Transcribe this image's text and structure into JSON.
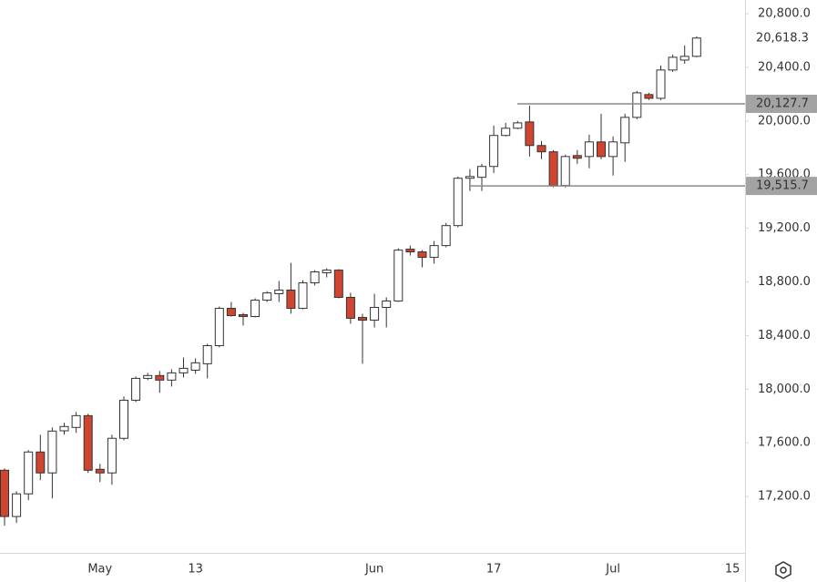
{
  "chart_data": {
    "type": "candlestick",
    "categories": [
      null,
      null,
      null,
      null,
      null,
      null,
      null,
      null,
      "May",
      null,
      null,
      null,
      null,
      null,
      null,
      null,
      "13",
      null,
      null,
      null,
      null,
      null,
      null,
      null,
      null,
      null,
      null,
      null,
      null,
      null,
      null,
      "Jun",
      null,
      null,
      null,
      null,
      null,
      null,
      null,
      null,
      null,
      "17",
      null,
      null,
      null,
      null,
      null,
      null,
      null,
      null,
      null,
      "Jul",
      null,
      null,
      null,
      null,
      null,
      null,
      null,
      null,
      null,
      "15"
    ],
    "open": [
      17396,
      17051,
      17220,
      17532,
      17376,
      17690,
      17715,
      17803,
      17403,
      17376,
      17634,
      17918,
      18081,
      18102,
      18068,
      18122,
      18142,
      18190,
      18325,
      18603,
      18556,
      18542,
      18664,
      18712,
      18739,
      18603,
      18793,
      18868,
      18888,
      18685,
      18535,
      18515,
      18610,
      18658,
      19044,
      19024,
      18983,
      19071,
      19220,
      19573,
      19580,
      19661,
      19892,
      19946,
      19993,
      19817,
      19770,
      19519,
      19742,
      19735,
      19844,
      19735,
      19837,
      20027,
      20197,
      20169,
      20380,
      20454,
      20482,
      null,
      null,
      null
    ],
    "high": [
      17410,
      17240,
      17546,
      17661,
      17715,
      17749,
      17830,
      17817,
      17444,
      17661,
      17946,
      18095,
      18122,
      18136,
      18149,
      18237,
      18230,
      18339,
      18617,
      18651,
      18569,
      18678,
      18732,
      18807,
      18942,
      18813,
      18888,
      18902,
      18895,
      18719,
      18563,
      18712,
      18685,
      19051,
      19071,
      19037,
      19105,
      19240,
      19586,
      19641,
      19681,
      19966,
      19986,
      20000,
      20115,
      19851,
      19783,
      19749,
      19783,
      19898,
      20054,
      19885,
      20054,
      20224,
      20210,
      20414,
      20495,
      20563,
      20630,
      null,
      null,
      null
    ],
    "low": [
      16983,
      17003,
      17173,
      17322,
      17186,
      17661,
      17675,
      17376,
      17308,
      17288,
      17620,
      17905,
      18068,
      17973,
      18020,
      18088,
      18115,
      18081,
      18312,
      18542,
      18474,
      18535,
      18651,
      18651,
      18563,
      18596,
      18773,
      18834,
      18678,
      18488,
      18190,
      18461,
      18461,
      18651,
      18997,
      18909,
      18936,
      19058,
      19207,
      19478,
      19478,
      19613,
      19885,
      19939,
      19735,
      19715,
      19505,
      19505,
      19681,
      19647,
      19715,
      19593,
      19695,
      20013,
      20156,
      20156,
      20366,
      20427,
      20475,
      null,
      null,
      null
    ],
    "close": [
      17051,
      17220,
      17532,
      17376,
      17688,
      17722,
      17803,
      17396,
      17376,
      17634,
      17918,
      18081,
      18102,
      18068,
      18122,
      18156,
      18197,
      18325,
      18603,
      18549,
      18542,
      18664,
      18718,
      18739,
      18603,
      18793,
      18875,
      18888,
      18685,
      18529,
      18515,
      18610,
      18658,
      19037,
      19024,
      18983,
      19071,
      19220,
      19573,
      19586,
      19661,
      19892,
      19946,
      19986,
      19817,
      19770,
      19519,
      19735,
      19722,
      19844,
      19735,
      19844,
      20027,
      20210,
      20169,
      20380,
      20475,
      20482,
      20618.3,
      null,
      null,
      null
    ],
    "up_color": "#ffffff",
    "down_color": "#d0452f",
    "ylim": [
      16780,
      20902
    ],
    "yticks": [
      {
        "value": 17200,
        "label": "17,200.0"
      },
      {
        "value": 17600,
        "label": "17,600.0"
      },
      {
        "value": 18000,
        "label": "18,000.0"
      },
      {
        "value": 18400,
        "label": "18,400.0"
      },
      {
        "value": 18800,
        "label": "18,800.0"
      },
      {
        "value": 19200,
        "label": "19,200.0"
      },
      {
        "value": 19600,
        "label": "19,600.0"
      },
      {
        "value": 20000,
        "label": "20,000.0"
      },
      {
        "value": 20400,
        "label": "20,400.0"
      },
      {
        "value": 20800,
        "label": "20,800.0"
      }
    ],
    "price_lines": [
      {
        "value": 20127.7,
        "label": "20,127.7"
      },
      {
        "value": 19515.7,
        "label": "19,515.7"
      }
    ],
    "last_price": {
      "value": 20618.3,
      "label": "20,618.3"
    }
  }
}
